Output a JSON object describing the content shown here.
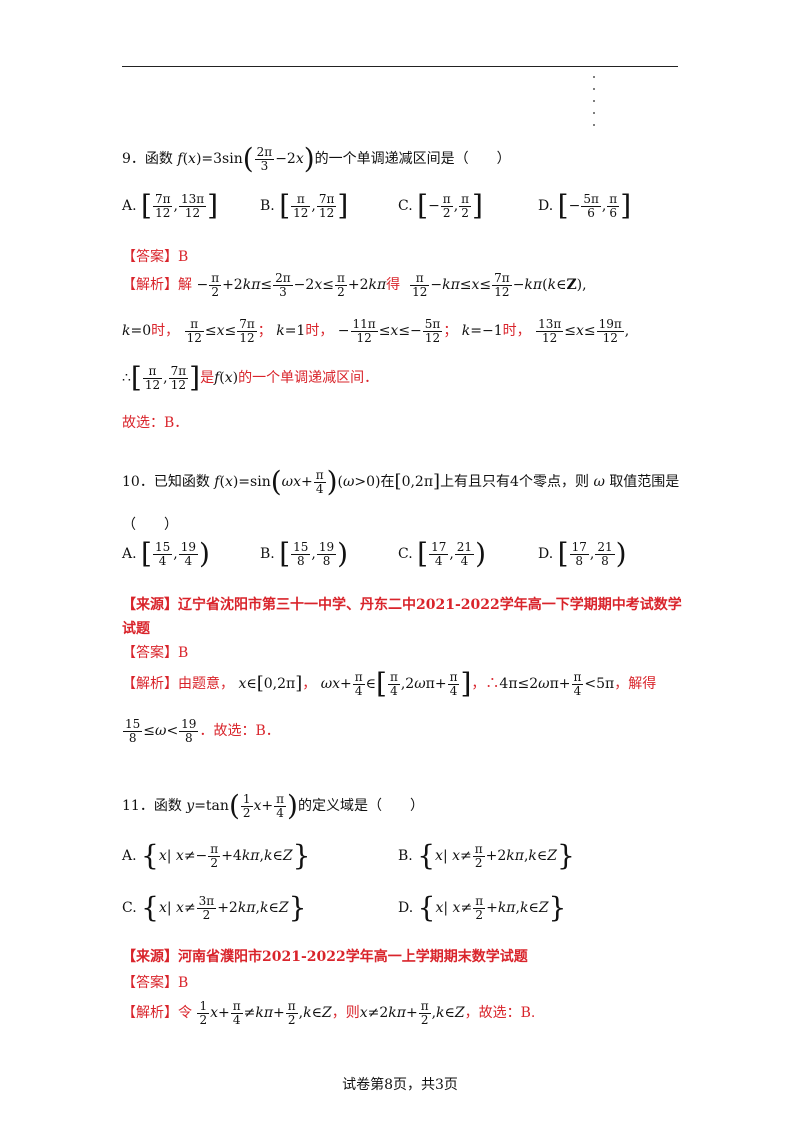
{
  "footer": "试卷第8页，共3页",
  "q9": {
    "num": "9．",
    "stem_a": "函数",
    "stem_b": "的一个单调递减区间是（　　）",
    "opt_a": "A.",
    "opt_b": "B.",
    "opt_c": "C.",
    "opt_d": "D.",
    "answer": "【答案】B",
    "analysis_label": "【解析】",
    "analysis_a": "解",
    "analysis_b": "得",
    "l2_a": "时，",
    "l2_b": "；",
    "l2_c": "时，",
    "l2_d": "；",
    "l2_e": "时，",
    "l3_a": "是",
    "l3_b": "的一个单调递减区间．",
    "conclusion": "故选：B．"
  },
  "q10": {
    "num": "10．",
    "stem_a": "已知函数",
    "stem_b": "在",
    "stem_c": "上有且只有4个零点，则",
    "stem_d": "取值范围是",
    "stem_paren": "（　　）",
    "opt_a": "A.",
    "opt_b": "B.",
    "opt_c": "C.",
    "opt_d": "D.",
    "source": "【来源】辽宁省沈阳市第三十一中学、丹东二中2021-2022学年高一下学期期中考试数学",
    "source_2": "试题",
    "answer": "【答案】B",
    "analysis_label": "【解析】",
    "analysis_a": "由题意，",
    "analysis_b": "，",
    "analysis_c": "，∴",
    "analysis_d": "，解得",
    "conclusion": "．故选：B．"
  },
  "q11": {
    "num": "11．",
    "stem_a": "函数",
    "stem_b": "的定义域是（　　）",
    "opt_a": "A.",
    "opt_b": "B.",
    "opt_c": "C.",
    "opt_d": "D.",
    "source": "【来源】河南省濮阳市2021-2022学年高一上学期期末数学试题",
    "answer": "【答案】B",
    "analysis_label": "【解析】",
    "analysis_a": "令",
    "analysis_b": "，则",
    "analysis_c": "，故选：B."
  }
}
